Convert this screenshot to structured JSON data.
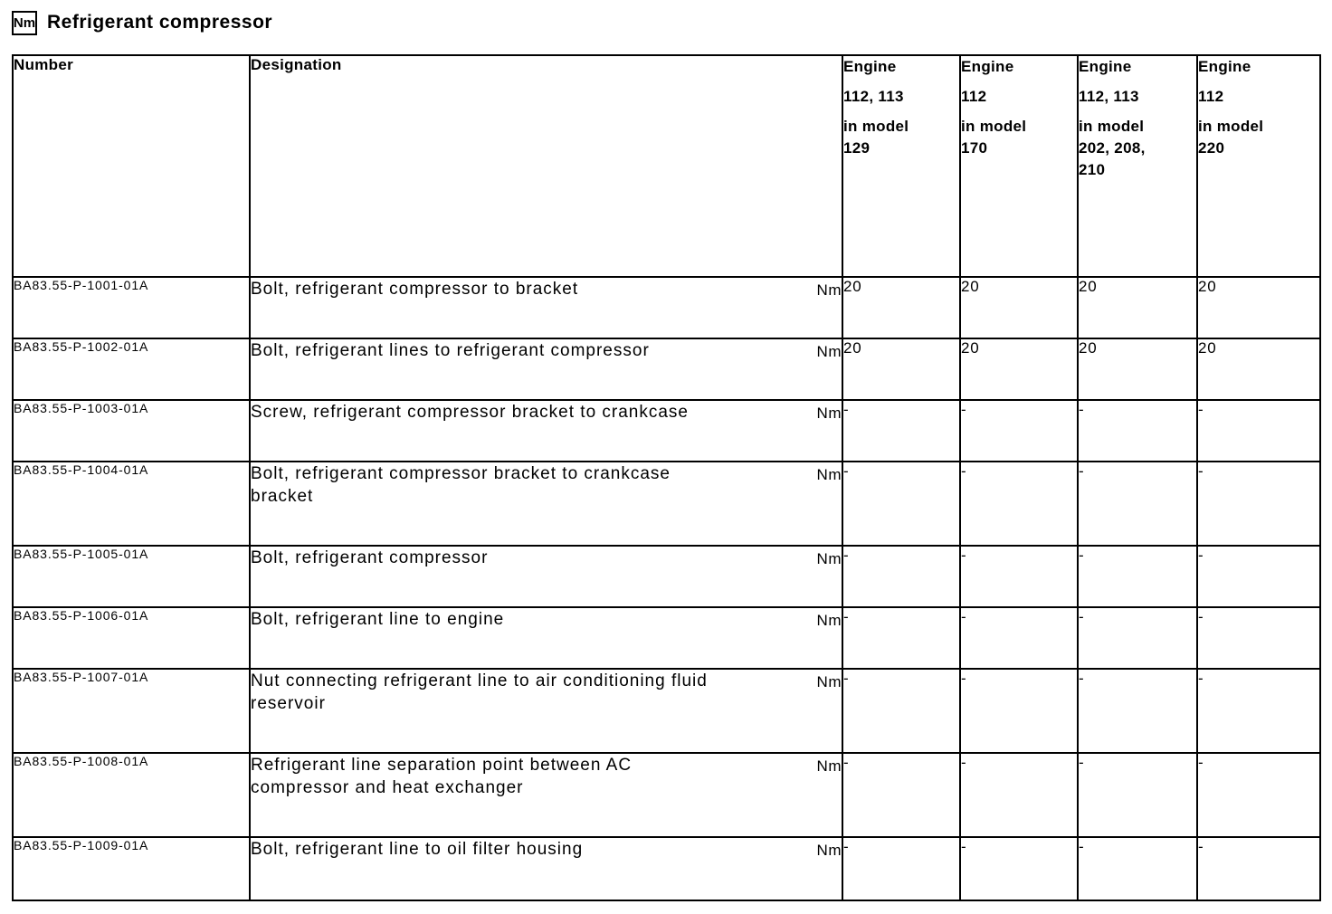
{
  "page": {
    "unit_badge": "Nm",
    "title": "Refrigerant compressor"
  },
  "table": {
    "col_number": "Number",
    "col_designation": "Designation",
    "engine_columns": [
      {
        "lines": [
          "Engine",
          "112, 113",
          "in model 129"
        ]
      },
      {
        "lines": [
          "Engine",
          "112",
          "in model 170"
        ]
      },
      {
        "lines": [
          "Engine",
          "112, 113",
          "in model 202, 208, 210"
        ]
      },
      {
        "lines": [
          "Engine",
          "112",
          "in model 220"
        ]
      }
    ],
    "rows": [
      {
        "number": "BA83.55-P-1001-01A",
        "designation_lines": [
          "Bolt, refrigerant compressor to bracket"
        ],
        "unit": "Nm",
        "values": [
          "20",
          "20",
          "20",
          "20"
        ]
      },
      {
        "number": "BA83.55-P-1002-01A",
        "designation_lines": [
          "Bolt, refrigerant lines to refrigerant compressor"
        ],
        "unit": "Nm",
        "values": [
          "20",
          "20",
          "20",
          "20"
        ]
      },
      {
        "number": "BA83.55-P-1003-01A",
        "designation_lines": [
          "Screw, refrigerant compressor bracket to crankcase"
        ],
        "unit": "Nm",
        "values": [
          "-",
          "-",
          "-",
          "-"
        ]
      },
      {
        "number": "BA83.55-P-1004-01A",
        "designation_lines": [
          "Bolt, refrigerant compressor bracket to crankcase",
          "bracket"
        ],
        "unit": "Nm",
        "values": [
          "-",
          "-",
          "-",
          "-"
        ]
      },
      {
        "number": "BA83.55-P-1005-01A",
        "designation_lines": [
          "Bolt, refrigerant compressor"
        ],
        "unit": "Nm",
        "values": [
          "-",
          "-",
          "-",
          "-"
        ]
      },
      {
        "number": "BA83.55-P-1006-01A",
        "designation_lines": [
          "Bolt, refrigerant line to engine"
        ],
        "unit": "Nm",
        "values": [
          "-",
          "-",
          "-",
          "-"
        ]
      },
      {
        "number": "BA83.55-P-1007-01A",
        "designation_lines": [
          "Nut connecting refrigerant line to air conditioning fluid",
          "reservoir"
        ],
        "unit": "Nm",
        "values": [
          "-",
          "-",
          "-",
          "-"
        ]
      },
      {
        "number": "BA83.55-P-1008-01A",
        "designation_lines": [
          "Refrigerant line separation point between AC",
          "compressor and heat exchanger"
        ],
        "unit": "Nm",
        "values": [
          "-",
          "-",
          "-",
          "-"
        ]
      },
      {
        "number": "BA83.55-P-1009-01A",
        "designation_lines": [
          "Bolt, refrigerant line to oil filter housing"
        ],
        "unit": "Nm",
        "values": [
          "-",
          "-",
          "-",
          "-"
        ]
      }
    ]
  }
}
